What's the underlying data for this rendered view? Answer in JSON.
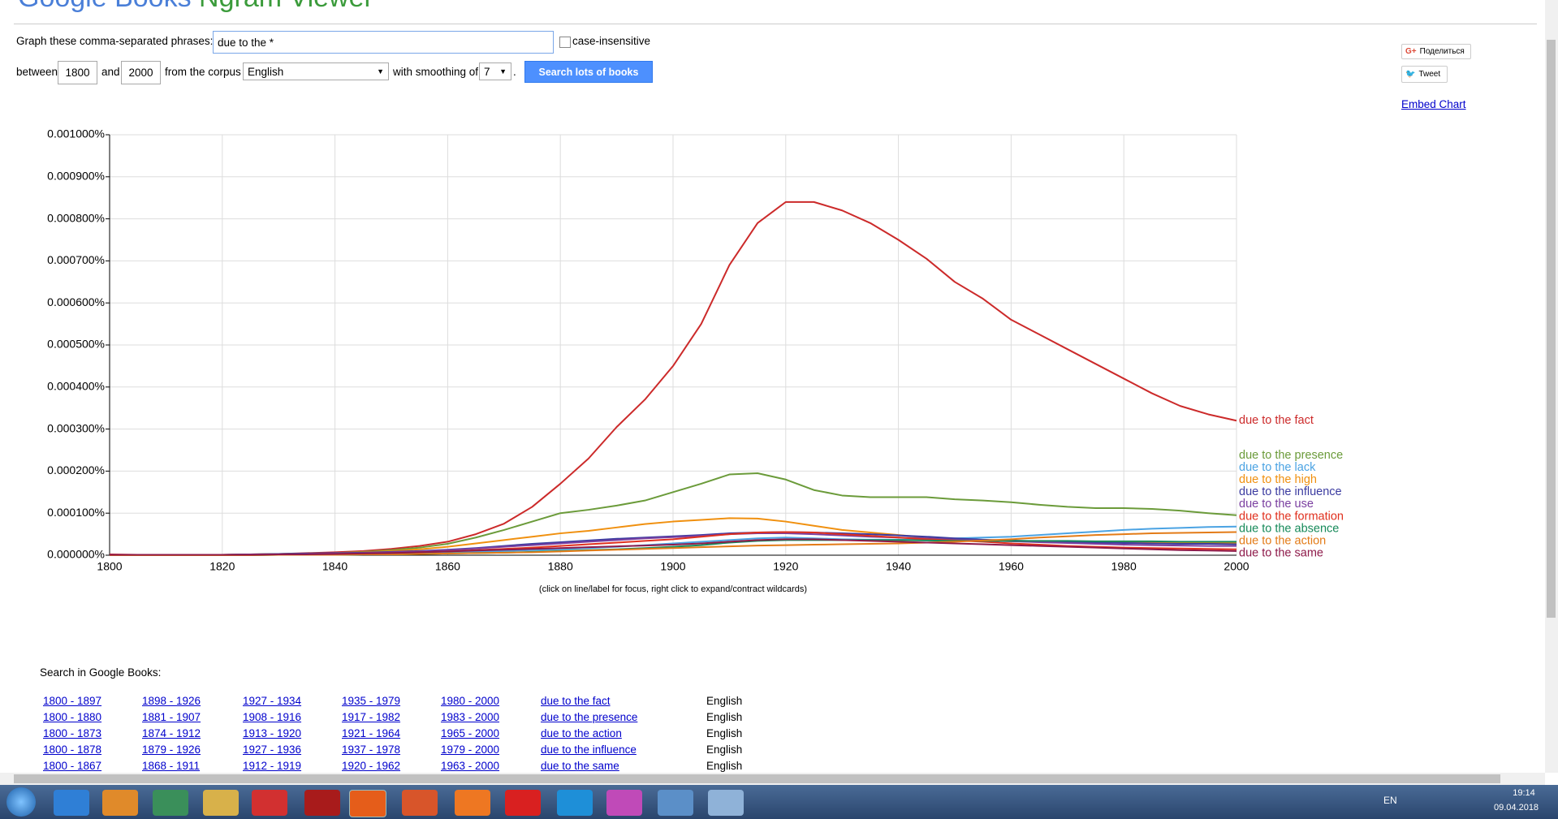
{
  "header": {
    "logo": "Google Books",
    "product": "Ngram Viewer"
  },
  "form": {
    "phrases_label": "Graph these comma-separated phrases:",
    "query": "due to the *",
    "case_insensitive": "case-insensitive",
    "between": "between",
    "start_year": "1800",
    "and": "and",
    "end_year": "2000",
    "corpus_label": "from the corpus",
    "corpus": "English",
    "smoothing_label": "with smoothing of",
    "smoothing": "7",
    "period": ".",
    "submit": "Search lots of books"
  },
  "share": {
    "google": "Поделиться",
    "tweet": "Tweet",
    "embed": "Embed Chart"
  },
  "chart_data": {
    "type": "line",
    "note": "(click on line/label for focus, right click to expand/contract wildcards)",
    "x": [
      1800,
      1805,
      1810,
      1815,
      1820,
      1825,
      1830,
      1835,
      1840,
      1845,
      1850,
      1855,
      1860,
      1865,
      1870,
      1875,
      1880,
      1885,
      1890,
      1895,
      1900,
      1905,
      1910,
      1915,
      1920,
      1925,
      1930,
      1935,
      1940,
      1945,
      1950,
      1955,
      1960,
      1965,
      1970,
      1975,
      1980,
      1985,
      1990,
      1995,
      2000
    ],
    "xlim": [
      1800,
      2000
    ],
    "xticks": [
      1800,
      1820,
      1840,
      1860,
      1880,
      1900,
      1920,
      1940,
      1960,
      1980,
      2000
    ],
    "ylim": [
      0,
      0.001
    ],
    "yticks": [
      {
        "value": 0,
        "label": "0.000000%"
      },
      {
        "value": 0.0001,
        "label": "0.000100%"
      },
      {
        "value": 0.0002,
        "label": "0.000200%"
      },
      {
        "value": 0.0003,
        "label": "0.000300%"
      },
      {
        "value": 0.0004,
        "label": "0.000400%"
      },
      {
        "value": 0.0005,
        "label": "0.000500%"
      },
      {
        "value": 0.0006,
        "label": "0.000600%"
      },
      {
        "value": 0.0007,
        "label": "0.000700%"
      },
      {
        "value": 0.0008,
        "label": "0.000800%"
      },
      {
        "value": 0.0009,
        "label": "0.000900%"
      },
      {
        "value": 0.001,
        "label": "0.001000%"
      }
    ],
    "grid": true,
    "series": [
      {
        "name": "due to the fact",
        "color": "#cc2a2a",
        "values": [
          2e-06,
          1e-06,
          1e-06,
          1e-06,
          1e-06,
          2e-06,
          3e-06,
          5e-06,
          7e-06,
          1e-05,
          1.5e-05,
          2.2e-05,
          3.2e-05,
          5e-05,
          7.5e-05,
          0.000115,
          0.00017,
          0.00023,
          0.000305,
          0.00037,
          0.00045,
          0.00055,
          0.00069,
          0.00079,
          0.00084,
          0.00084,
          0.00082,
          0.00079,
          0.00075,
          0.000705,
          0.00065,
          0.00061,
          0.00056,
          0.000525,
          0.00049,
          0.000455,
          0.00042,
          0.000385,
          0.000355,
          0.000335,
          0.00032
        ]
      },
      {
        "name": "due to the presence",
        "color": "#6b9b3a",
        "values": [
          1e-06,
          1e-06,
          1e-06,
          1e-06,
          1e-06,
          2e-06,
          3e-06,
          4e-06,
          5e-06,
          8e-06,
          1.2e-05,
          1.8e-05,
          2.7e-05,
          4.2e-05,
          6e-05,
          8e-05,
          0.0001,
          0.000108,
          0.000118,
          0.00013,
          0.00015,
          0.00017,
          0.000192,
          0.000195,
          0.00018,
          0.000155,
          0.000142,
          0.000138,
          0.000138,
          0.000138,
          0.000133,
          0.00013,
          0.000126,
          0.00012,
          0.000115,
          0.000112,
          0.000112,
          0.00011,
          0.000106,
          0.0001,
          9.5e-05
        ]
      },
      {
        "name": "due to the lack",
        "color": "#4ba3e3",
        "values": [
          0,
          0,
          0,
          0,
          0,
          1e-06,
          1e-06,
          2e-06,
          2e-06,
          3e-06,
          4e-06,
          5e-06,
          6e-06,
          8e-06,
          1e-05,
          1.2e-05,
          1.4e-05,
          1.7e-05,
          2e-05,
          2.4e-05,
          2.8e-05,
          3.2e-05,
          3.6e-05,
          4e-05,
          4.2e-05,
          4e-05,
          3.8e-05,
          3.7e-05,
          3.7e-05,
          3.8e-05,
          4e-05,
          4.2e-05,
          4.4e-05,
          4.8e-05,
          5.2e-05,
          5.6e-05,
          6e-05,
          6.3e-05,
          6.5e-05,
          6.7e-05,
          6.8e-05
        ]
      },
      {
        "name": "due to the high",
        "color": "#f0900f",
        "values": [
          0,
          0,
          0,
          0,
          0,
          1e-06,
          2e-06,
          3e-06,
          5e-06,
          7e-06,
          1e-05,
          1.4e-05,
          2e-05,
          2.8e-05,
          3.6e-05,
          4.4e-05,
          5.2e-05,
          5.8e-05,
          6.6e-05,
          7.4e-05,
          8e-05,
          8.4e-05,
          8.8e-05,
          8.7e-05,
          8e-05,
          7e-05,
          6e-05,
          5.4e-05,
          4.8e-05,
          4.2e-05,
          3.8e-05,
          3.5e-05,
          3.3e-05,
          3.2e-05,
          3.2e-05,
          3.1e-05,
          3.1e-05,
          3e-05,
          3e-05,
          3e-05,
          3e-05
        ]
      },
      {
        "name": "due to the influence",
        "color": "#3b3ba0",
        "values": [
          1e-06,
          1e-06,
          1e-06,
          1e-06,
          1e-06,
          2e-06,
          3e-06,
          4e-06,
          5e-06,
          6e-06,
          8e-06,
          1e-05,
          1.3e-05,
          1.7e-05,
          2.2e-05,
          2.7e-05,
          3.1e-05,
          3.5e-05,
          3.9e-05,
          4.2e-05,
          4.5e-05,
          4.8e-05,
          5.2e-05,
          5.4e-05,
          5.5e-05,
          5.4e-05,
          5.2e-05,
          5e-05,
          4.7e-05,
          4.4e-05,
          4e-05,
          3.7e-05,
          3.5e-05,
          3.3e-05,
          3.1e-05,
          3e-05,
          2.9e-05,
          2.8e-05,
          2.7e-05,
          2.7e-05,
          2.6e-05
        ]
      },
      {
        "name": "due to the use",
        "color": "#7a3fa0",
        "values": [
          1e-06,
          1e-06,
          1e-06,
          1e-06,
          1e-06,
          2e-06,
          2e-06,
          3e-06,
          4e-06,
          5e-06,
          7e-06,
          9e-06,
          1.2e-05,
          1.6e-05,
          2e-05,
          2.4e-05,
          2.8e-05,
          3.2e-05,
          3.6e-05,
          4e-05,
          4.3e-05,
          4.6e-05,
          5e-05,
          5.2e-05,
          5.2e-05,
          5e-05,
          4.7e-05,
          4.4e-05,
          4.2e-05,
          4e-05,
          3.7e-05,
          3.5e-05,
          3.3e-05,
          3.1e-05,
          2.9e-05,
          2.7e-05,
          2.5e-05,
          2.4e-05,
          2.3e-05,
          2.2e-05,
          2.2e-05
        ]
      },
      {
        "name": "due to the formation",
        "color": "#e0301e",
        "values": [
          0,
          0,
          0,
          0,
          0,
          1e-06,
          1e-06,
          2e-06,
          3e-06,
          4e-06,
          5e-06,
          7e-06,
          9e-06,
          1.2e-05,
          1.5e-05,
          1.8e-05,
          2.2e-05,
          2.6e-05,
          3e-05,
          3.4e-05,
          3.8e-05,
          4.4e-05,
          5e-05,
          5.4e-05,
          5.5e-05,
          5.4e-05,
          5e-05,
          4.6e-05,
          4.2e-05,
          3.8e-05,
          3.5e-05,
          3.2e-05,
          2.8e-05,
          2.5e-05,
          2.2e-05,
          2e-05,
          1.8e-05,
          1.7e-05,
          1.6e-05,
          1.5e-05,
          1.4e-05
        ]
      },
      {
        "name": "due to the absence",
        "color": "#178a5a",
        "values": [
          0,
          0,
          0,
          0,
          0,
          0,
          1e-06,
          1e-06,
          1e-06,
          2e-06,
          2e-06,
          3e-06,
          4e-06,
          5e-06,
          6e-06,
          8e-06,
          1e-05,
          1.2e-05,
          1.4e-05,
          1.7e-05,
          2e-05,
          2.4e-05,
          3e-05,
          3.4e-05,
          3.6e-05,
          3.6e-05,
          3.6e-05,
          3.6e-05,
          3.6e-05,
          3.5e-05,
          3.4e-05,
          3.4e-05,
          3.4e-05,
          3.4e-05,
          3.4e-05,
          3.3e-05,
          3.3e-05,
          3.3e-05,
          3.2e-05,
          3.2e-05,
          3.2e-05
        ]
      },
      {
        "name": "due to the action",
        "color": "#e37b17",
        "values": [
          0,
          0,
          0,
          0,
          0,
          0,
          1e-06,
          1e-06,
          1e-06,
          2e-06,
          2e-06,
          3e-06,
          4e-06,
          5e-06,
          6e-06,
          7e-06,
          9e-06,
          1.1e-05,
          1.3e-05,
          1.5e-05,
          1.7e-05,
          1.9e-05,
          2.1e-05,
          2.3e-05,
          2.4e-05,
          2.5e-05,
          2.6e-05,
          2.7e-05,
          2.8e-05,
          3e-05,
          3.2e-05,
          3.5e-05,
          3.8e-05,
          4.2e-05,
          4.5e-05,
          4.8e-05,
          5e-05,
          5.2e-05,
          5.3e-05,
          5.4e-05,
          5.5e-05
        ]
      },
      {
        "name": "due to the same",
        "color": "#8e1a4a",
        "values": [
          1e-06,
          1e-06,
          1e-06,
          1e-06,
          1e-06,
          1e-06,
          2e-06,
          2e-06,
          3e-06,
          4e-06,
          5e-06,
          7e-06,
          9e-06,
          1.1e-05,
          1.3e-05,
          1.5e-05,
          1.7e-05,
          1.9e-05,
          2.1e-05,
          2.3e-05,
          2.5e-05,
          2.8e-05,
          3.2e-05,
          3.6e-05,
          3.8e-05,
          3.8e-05,
          3.6e-05,
          3.4e-05,
          3.2e-05,
          3e-05,
          2.8e-05,
          2.6e-05,
          2.4e-05,
          2.2e-05,
          2e-05,
          1.8e-05,
          1.6e-05,
          1.4e-05,
          1.2e-05,
          1.1e-05,
          1e-05
        ]
      }
    ]
  },
  "search": {
    "title": "Search in Google Books:",
    "rows": [
      [
        "1800 - 1897",
        "1898 - 1926",
        "1927 - 1934",
        "1935 - 1979",
        "1980 - 2000",
        "due to the fact",
        "English"
      ],
      [
        "1800 - 1880",
        "1881 - 1907",
        "1908 - 1916",
        "1917 - 1982",
        "1983 - 2000",
        "due to the presence",
        "English"
      ],
      [
        "1800 - 1873",
        "1874 - 1912",
        "1913 - 1920",
        "1921 - 1964",
        "1965 - 2000",
        "due to the action",
        "English"
      ],
      [
        "1800 - 1878",
        "1879 - 1926",
        "1927 - 1936",
        "1937 - 1978",
        "1979 - 2000",
        "due to the influence",
        "English"
      ],
      [
        "1800 - 1867",
        "1868 - 1911",
        "1912 - 1919",
        "1920 - 1962",
        "1963 - 2000",
        "due to the same",
        "English"
      ]
    ]
  },
  "taskbar": {
    "language": "EN",
    "time": "19:14",
    "date": "09.04.2018"
  }
}
